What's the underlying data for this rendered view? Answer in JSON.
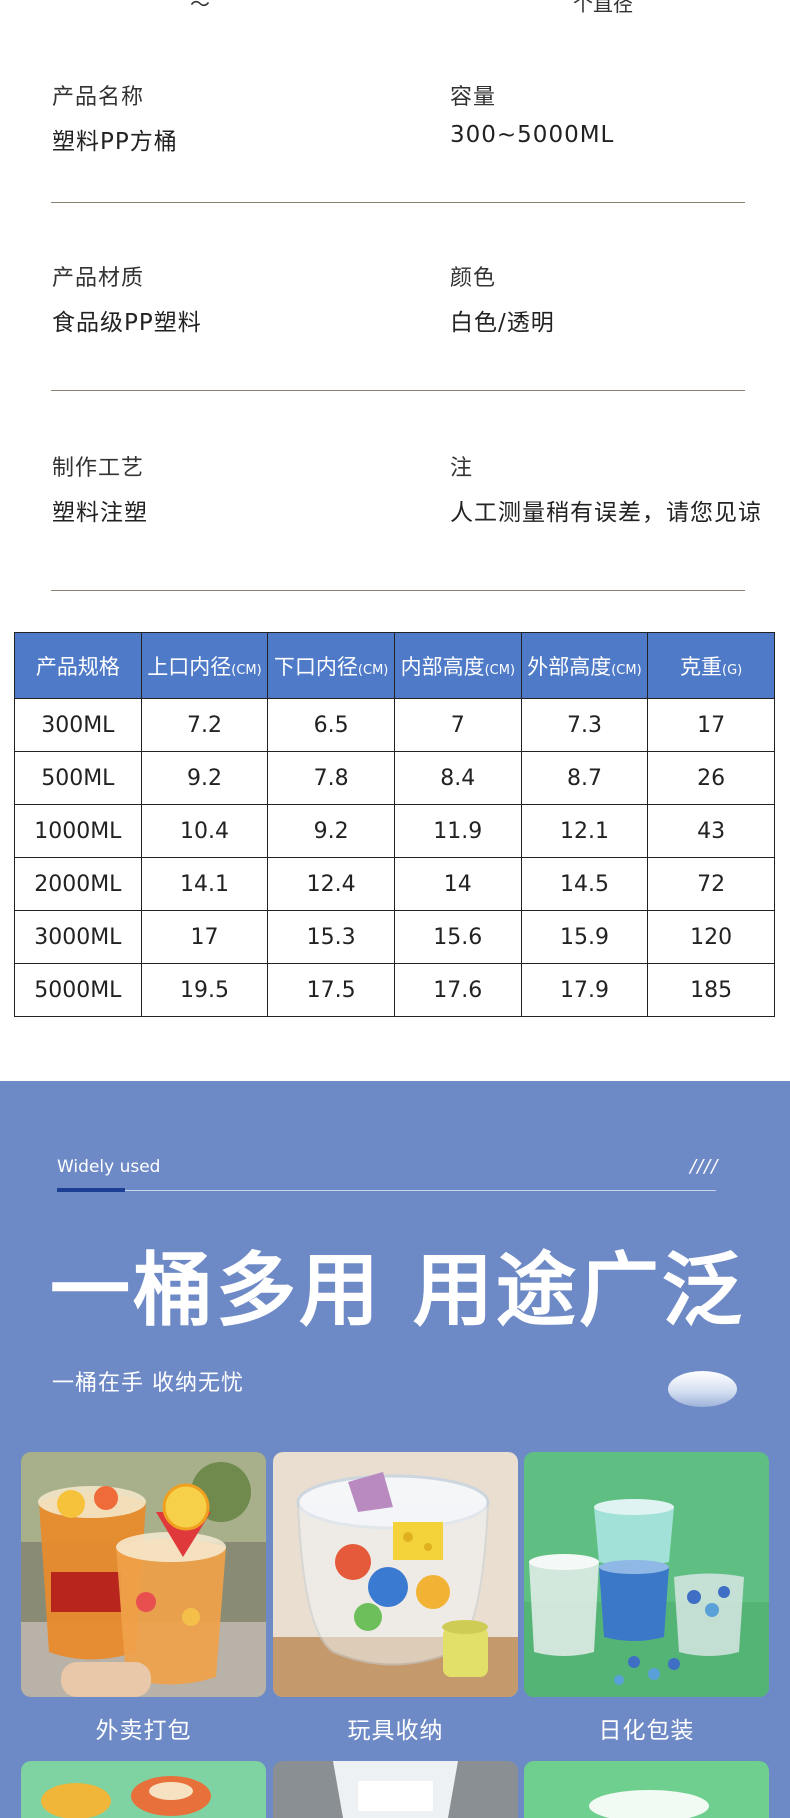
{
  "top_cutoff": {
    "left": "～",
    "right": "个直径"
  },
  "specs": [
    {
      "label": "产品名称",
      "value": "塑料PP方桶"
    },
    {
      "label": "容量",
      "value": "300~5000ML"
    },
    {
      "label": "产品材质",
      "value": "食品级PP塑料"
    },
    {
      "label": "颜色",
      "value": "白色/透明"
    },
    {
      "label": "制作工艺",
      "value": "塑料注塑"
    },
    {
      "label": "注",
      "value": "人工测量稍有误差，请您见谅"
    }
  ],
  "table": {
    "headers": [
      {
        "text": "产品规格",
        "unit": ""
      },
      {
        "text": "上口内径",
        "unit": "(CM)"
      },
      {
        "text": "下口内径",
        "unit": "(CM)"
      },
      {
        "text": "内部高度",
        "unit": "(CM)"
      },
      {
        "text": "外部高度",
        "unit": "(CM)"
      },
      {
        "text": "克重",
        "unit": "(G)"
      }
    ],
    "rows": [
      [
        "300ML",
        "7.2",
        "6.5",
        "7",
        "7.3",
        "17"
      ],
      [
        "500ML",
        "9.2",
        "7.8",
        "8.4",
        "8.7",
        "26"
      ],
      [
        "1000ML",
        "10.4",
        "9.2",
        "11.9",
        "12.1",
        "43"
      ],
      [
        "2000ML",
        "14.1",
        "12.4",
        "14",
        "14.5",
        "72"
      ],
      [
        "3000ML",
        "17",
        "15.3",
        "15.6",
        "15.9",
        "120"
      ],
      [
        "5000ML",
        "19.5",
        "17.5",
        "17.6",
        "17.9",
        "185"
      ]
    ]
  },
  "usage": {
    "eyebrow": "Widely used",
    "slashes": "////",
    "title": "一桶多用 用途广泛",
    "subtitle": "一桶在手 收纳无忧",
    "cards": [
      {
        "caption": "外卖打包",
        "image": "fruit-tea-cups-photo"
      },
      {
        "caption": "玩具收纳",
        "image": "toy-storage-bucket-photo"
      },
      {
        "caption": "日化包装",
        "image": "laundry-pod-buckets-photo"
      }
    ],
    "partial_cards": [
      "snack-bucket-photo",
      "white-bucket-photo",
      "green-bucket-photo"
    ]
  },
  "colors": {
    "table_header": "#4e7ac8",
    "section_bg": "#6e8ac6",
    "accent_line": "#1c3f94"
  }
}
